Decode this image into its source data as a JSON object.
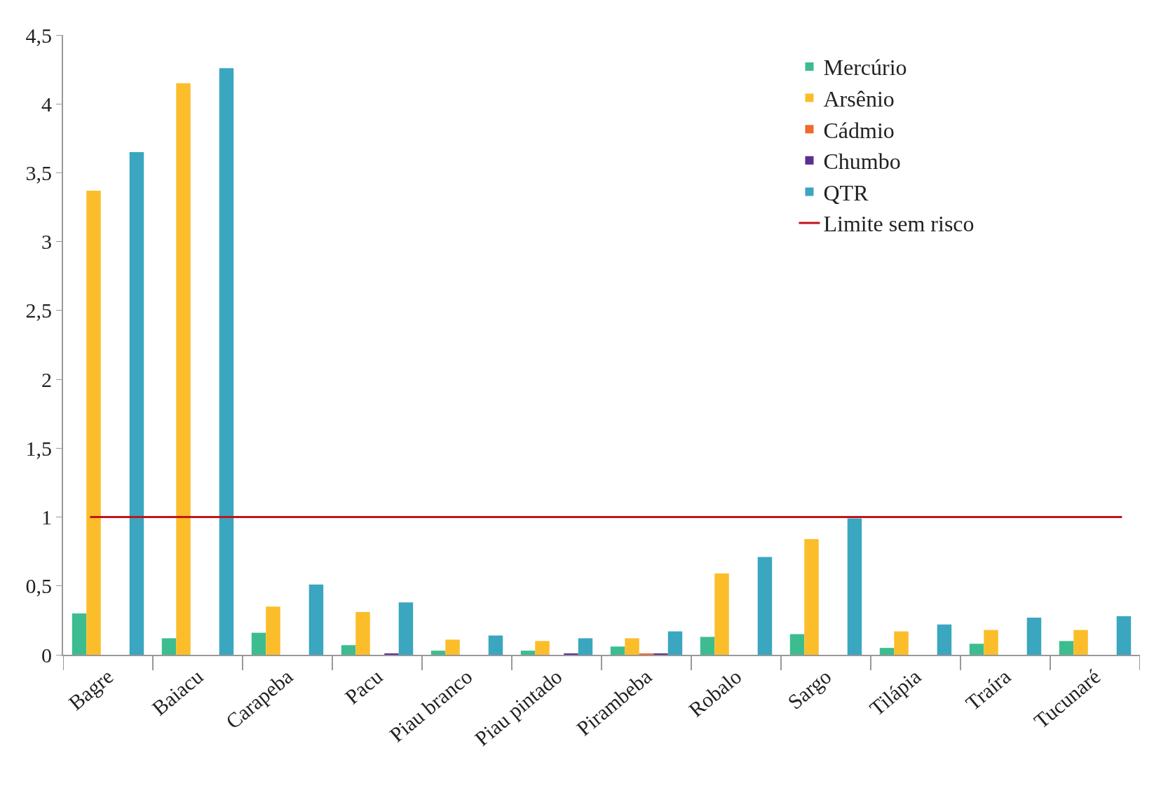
{
  "chart_data": {
    "type": "bar",
    "categories": [
      "Bagre",
      "Baiacu",
      "Carapeba",
      "Pacu",
      "Piau branco",
      "Piau pintado",
      "Pirambeba",
      "Robalo",
      "Sargo",
      "Tilápia",
      "Traíra",
      "Tucunaré"
    ],
    "series": [
      {
        "name": "Mercúrio",
        "color": "#3dbd8f",
        "values": [
          0.3,
          0.12,
          0.16,
          0.07,
          0.03,
          0.03,
          0.06,
          0.13,
          0.15,
          0.05,
          0.08,
          0.1
        ]
      },
      {
        "name": "Arsênio",
        "color": "#fbbd2a",
        "values": [
          3.37,
          4.15,
          0.35,
          0.31,
          0.11,
          0.1,
          0.12,
          0.59,
          0.84,
          0.17,
          0.18,
          0.18
        ]
      },
      {
        "name": "Cádmio",
        "color": "#f06a2c",
        "values": [
          0,
          0,
          0,
          0,
          0,
          0,
          0.01,
          0,
          0,
          0,
          0,
          0
        ]
      },
      {
        "name": "Chumbo",
        "color": "#5b2e91",
        "values": [
          0,
          0,
          0,
          0.01,
          0,
          0.01,
          0.01,
          0,
          0,
          0,
          0,
          0
        ]
      },
      {
        "name": "QTR",
        "color": "#3aa6c0",
        "values": [
          3.65,
          4.26,
          0.51,
          0.38,
          0.14,
          0.12,
          0.17,
          0.71,
          0.99,
          0.22,
          0.27,
          0.28
        ]
      }
    ],
    "ref_lines": [
      {
        "axis": "y",
        "value": 1,
        "label": "Limite sem risco",
        "color": "#c0141c"
      }
    ],
    "ylim": [
      0,
      4.5
    ],
    "yticks": [
      0,
      {
        "value": 0.5,
        "label": "0,5"
      },
      1,
      {
        "value": 1.5,
        "label": "1,5"
      },
      2,
      {
        "value": 2.5,
        "label": "2,5"
      },
      3,
      {
        "value": 3.5,
        "label": "3,5"
      },
      4,
      {
        "value": 4.5,
        "label": "4,5"
      }
    ],
    "grid": false,
    "legend": "top right"
  }
}
